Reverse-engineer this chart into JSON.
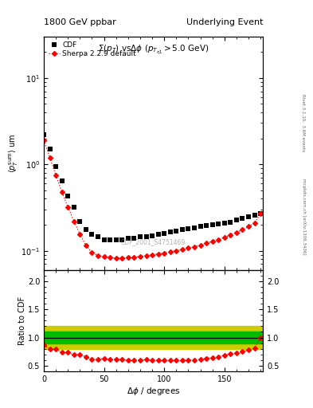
{
  "title_left": "1800 GeV ppbar",
  "title_right": "Underlying Event",
  "plot_title": "$\\Sigma(p_T)$ vs$\\Delta\\phi$ $(p_{T_{\\eta1}} > 5.0$ GeV$)$",
  "watermark": "CDF_2001_S4751469",
  "right_label_top": "Rivet 3.1.10,  3.6M events",
  "right_label_bottom": "mcplots.cern.ch [arXiv:1306.3436]",
  "ylabel_main": "$\\langle p_T^{\\rm sum}\\rangle$ um",
  "ylabel_ratio": "Ratio to CDF",
  "xlabel": "$\\Delta\\phi$ / degrees",
  "ylim_main": [
    0.06,
    30
  ],
  "ylim_ratio": [
    0.4,
    2.2
  ],
  "cdf_x": [
    0,
    5,
    10,
    15,
    20,
    25,
    30,
    35,
    40,
    45,
    50,
    55,
    60,
    65,
    70,
    75,
    80,
    85,
    90,
    95,
    100,
    105,
    110,
    115,
    120,
    125,
    130,
    135,
    140,
    145,
    150,
    155,
    160,
    165,
    170,
    175,
    180
  ],
  "cdf_y": [
    2.2,
    1.5,
    0.95,
    0.65,
    0.43,
    0.32,
    0.22,
    0.175,
    0.155,
    0.145,
    0.135,
    0.135,
    0.135,
    0.135,
    0.14,
    0.14,
    0.145,
    0.145,
    0.15,
    0.155,
    0.16,
    0.165,
    0.17,
    0.175,
    0.18,
    0.185,
    0.19,
    0.195,
    0.2,
    0.205,
    0.21,
    0.215,
    0.225,
    0.235,
    0.245,
    0.26,
    0.27
  ],
  "sherpa_x": [
    0,
    5,
    10,
    15,
    20,
    25,
    30,
    35,
    40,
    45,
    50,
    55,
    60,
    65,
    70,
    75,
    80,
    85,
    90,
    95,
    100,
    105,
    110,
    115,
    120,
    125,
    130,
    135,
    140,
    145,
    150,
    155,
    160,
    165,
    170,
    175,
    180
  ],
  "sherpa_y": [
    1.9,
    1.2,
    0.75,
    0.48,
    0.32,
    0.22,
    0.155,
    0.115,
    0.095,
    0.088,
    0.085,
    0.083,
    0.082,
    0.082,
    0.083,
    0.084,
    0.086,
    0.088,
    0.09,
    0.092,
    0.094,
    0.097,
    0.1,
    0.103,
    0.107,
    0.111,
    0.116,
    0.122,
    0.128,
    0.135,
    0.143,
    0.152,
    0.163,
    0.175,
    0.19,
    0.21,
    0.27
  ],
  "ratio_x": [
    0,
    5,
    10,
    15,
    20,
    25,
    30,
    35,
    40,
    45,
    50,
    55,
    60,
    65,
    70,
    75,
    80,
    85,
    90,
    95,
    100,
    105,
    110,
    115,
    120,
    125,
    130,
    135,
    140,
    145,
    150,
    155,
    160,
    165,
    170,
    175,
    180
  ],
  "ratio_y": [
    0.86,
    0.8,
    0.79,
    0.74,
    0.74,
    0.69,
    0.7,
    0.66,
    0.61,
    0.61,
    0.63,
    0.61,
    0.61,
    0.61,
    0.59,
    0.6,
    0.59,
    0.61,
    0.6,
    0.59,
    0.59,
    0.59,
    0.59,
    0.59,
    0.595,
    0.6,
    0.61,
    0.63,
    0.64,
    0.66,
    0.68,
    0.71,
    0.73,
    0.75,
    0.78,
    0.81,
    1.0
  ],
  "cdf_color": "black",
  "sherpa_color": "red",
  "band_green": "#00bb00",
  "band_yellow": "#cccc00",
  "ref_line": 1.0,
  "green_band_lo": 0.9,
  "green_band_hi": 1.1,
  "yellow_band_lo": 0.8,
  "yellow_band_hi": 1.2,
  "fig_width": 3.93,
  "fig_height": 5.12,
  "dpi": 100
}
